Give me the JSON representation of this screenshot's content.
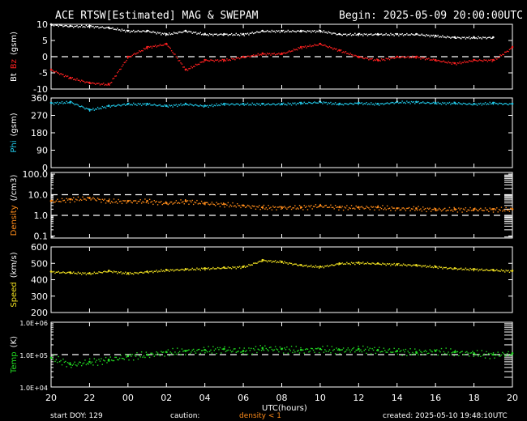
{
  "title": "ACE RTSW[Estimated] MAG & SWEPAM",
  "begin": "Begin: 2025-05-09 20:00:00UTC",
  "footer": {
    "start": "start DOY: 129",
    "caution": "caution:",
    "density_note": "density < 1",
    "created": "created: 2025-05-10 19:48:10UTC"
  },
  "colors": {
    "bt": "#ffffff",
    "bz": "#ff2020",
    "phi": "#20c8e8",
    "density": "#ff8c1a",
    "speed": "#f0e020",
    "temp": "#22dd22",
    "axes": "#ffffff",
    "background": "#000000"
  },
  "chart_data": [
    {
      "type": "line",
      "panel": "magnetic",
      "ylabel": [
        "Bt",
        "Bz",
        "(gsm)"
      ],
      "ylim": [
        -10,
        10
      ],
      "yticks": [
        -10,
        -5,
        0,
        5,
        10
      ],
      "ytick_labels": [
        "-10",
        "-5",
        "0",
        "5",
        "10"
      ],
      "reference_lines": [
        0
      ],
      "x": [
        20,
        21,
        22,
        23,
        24,
        25,
        26,
        27,
        28,
        29,
        30,
        31,
        32,
        33,
        34,
        35,
        36,
        37,
        38,
        39,
        40,
        41,
        42,
        43,
        44
      ],
      "series": [
        {
          "name": "Bt",
          "values": [
            10,
            9.5,
            9.5,
            9,
            8,
            8,
            7,
            8,
            7,
            7,
            7,
            8,
            8,
            8,
            8,
            7,
            7,
            7,
            7,
            7,
            6.5,
            6,
            6,
            6,
            null
          ]
        },
        {
          "name": "Bz",
          "values": [
            -4,
            -6.5,
            -8,
            -8.5,
            0,
            3,
            4,
            -4,
            -1,
            -1,
            0,
            1,
            1,
            3,
            4,
            2,
            0,
            -1,
            0,
            0,
            -1,
            -2,
            -1,
            -1,
            3
          ]
        }
      ]
    },
    {
      "type": "scatter",
      "panel": "phi",
      "ylabel": [
        "Phi",
        "(gsm)"
      ],
      "ylim": [
        0,
        360
      ],
      "yticks": [
        0,
        90,
        180,
        270,
        360
      ],
      "ytick_labels": [
        "0",
        "90",
        "180",
        "270",
        "360"
      ],
      "x": [
        20,
        21,
        22,
        23,
        24,
        25,
        26,
        27,
        28,
        29,
        30,
        31,
        32,
        33,
        34,
        35,
        36,
        37,
        38,
        39,
        40,
        41,
        42,
        43,
        44
      ],
      "series": [
        {
          "name": "Phi",
          "values": [
            335,
            340,
            300,
            320,
            330,
            330,
            320,
            330,
            320,
            330,
            330,
            330,
            330,
            335,
            340,
            330,
            335,
            330,
            340,
            340,
            335,
            335,
            330,
            335,
            330
          ]
        }
      ]
    },
    {
      "type": "scatter",
      "panel": "density",
      "ylabel": [
        "Density",
        "(/cm3)"
      ],
      "yscale": "log",
      "ylim": [
        0.08,
        120
      ],
      "yticks": [
        0.1,
        1.0,
        10.0,
        100.0
      ],
      "ytick_labels": [
        "0.1",
        "1.0",
        "10.0",
        "100.0"
      ],
      "reference_lines": [
        1.0,
        10.0
      ],
      "x": [
        20,
        21,
        22,
        23,
        24,
        25,
        26,
        27,
        28,
        29,
        30,
        31,
        32,
        33,
        34,
        35,
        36,
        37,
        38,
        39,
        40,
        41,
        42,
        43,
        44
      ],
      "series": [
        {
          "name": "Density",
          "values": [
            5,
            6,
            7,
            5,
            5,
            5,
            4,
            5,
            4,
            3.5,
            3,
            2.5,
            2.5,
            2.5,
            3,
            2.5,
            2.5,
            2.5,
            2.2,
            2.2,
            2,
            2,
            2,
            2,
            2
          ]
        }
      ]
    },
    {
      "type": "scatter",
      "panel": "speed",
      "ylabel": [
        "Speed",
        "(km/s)"
      ],
      "ylim": [
        200,
        600
      ],
      "yticks": [
        200,
        300,
        400,
        500,
        600
      ],
      "ytick_labels": [
        "200",
        "300",
        "400",
        "500",
        "600"
      ],
      "x": [
        20,
        21,
        22,
        23,
        24,
        25,
        26,
        27,
        28,
        29,
        30,
        31,
        32,
        33,
        34,
        35,
        36,
        37,
        38,
        39,
        40,
        41,
        42,
        43,
        44
      ],
      "series": [
        {
          "name": "Speed",
          "values": [
            450,
            445,
            440,
            455,
            440,
            450,
            460,
            465,
            470,
            475,
            480,
            520,
            510,
            490,
            480,
            500,
            505,
            500,
            495,
            490,
            480,
            470,
            465,
            460,
            455
          ]
        }
      ]
    },
    {
      "type": "scatter",
      "panel": "temp",
      "ylabel": [
        "Temp",
        "(K)"
      ],
      "yscale": "log",
      "ylim": [
        10000,
        1000000
      ],
      "yticks": [
        10000,
        100000,
        1000000
      ],
      "ytick_labels": [
        "1.0E+04",
        "1.0E+05",
        "1.0E+06"
      ],
      "reference_lines": [
        100000
      ],
      "x": [
        20,
        21,
        22,
        23,
        24,
        25,
        26,
        27,
        28,
        29,
        30,
        31,
        32,
        33,
        34,
        35,
        36,
        37,
        38,
        39,
        40,
        41,
        42,
        43,
        44
      ],
      "series": [
        {
          "name": "Temp",
          "values": [
            80000,
            50000,
            60000,
            70000,
            90000,
            100000,
            120000,
            130000,
            140000,
            150000,
            130000,
            160000,
            150000,
            140000,
            150000,
            140000,
            150000,
            140000,
            130000,
            120000,
            130000,
            120000,
            110000,
            100000,
            110000
          ]
        }
      ]
    }
  ],
  "xaxis": {
    "label": "UTC(hours)",
    "range": [
      20,
      44
    ],
    "tick_labels": [
      "20",
      "22",
      "00",
      "02",
      "04",
      "06",
      "08",
      "10",
      "12",
      "14",
      "16",
      "18",
      "20"
    ]
  }
}
